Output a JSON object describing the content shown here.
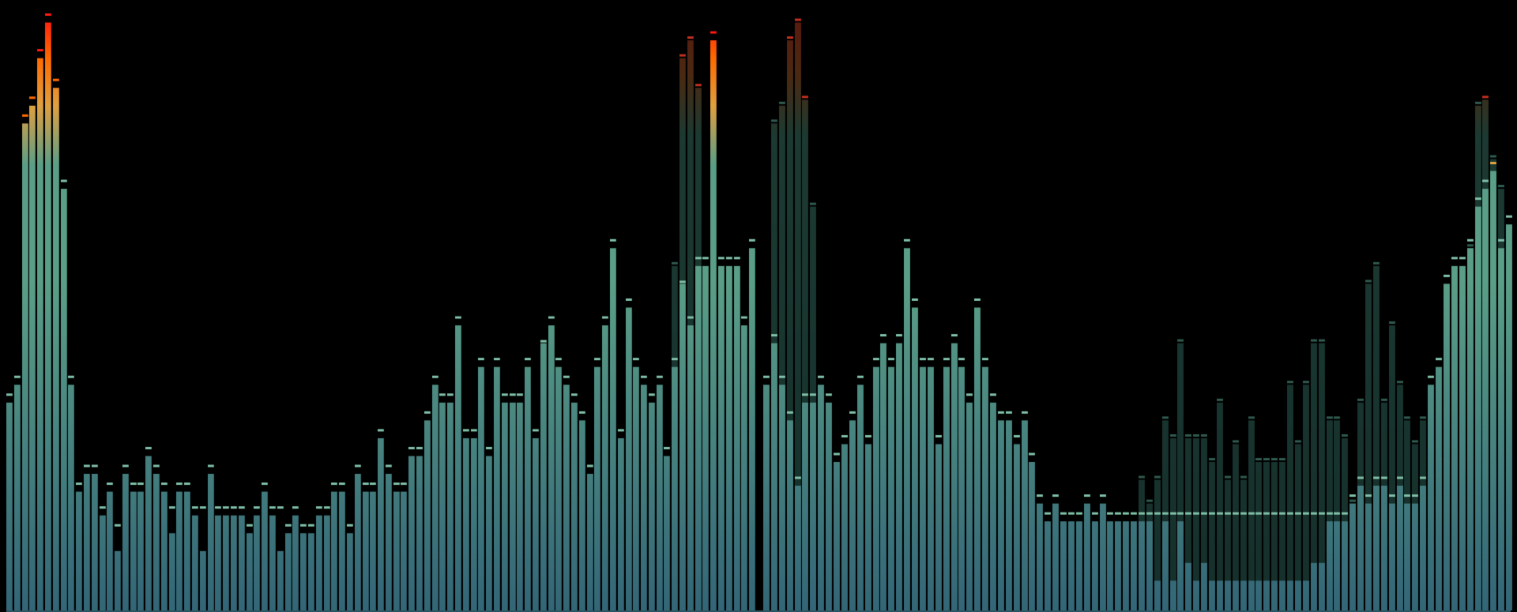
{
  "visualizer": {
    "type": "spectrum-analyzer-stereo",
    "channels": [
      {
        "name": "left",
        "levels": [
          0.35,
          0.38,
          0.82,
          0.85,
          0.93,
          0.99,
          0.88,
          0.71,
          0.38,
          0.2,
          0.23,
          0.23,
          0.16,
          0.2,
          0.1,
          0.23,
          0.2,
          0.2,
          0.26,
          0.23,
          0.2,
          0.13,
          0.2,
          0.2,
          0.16,
          0.1,
          0.23,
          0.16,
          0.16,
          0.16,
          0.16,
          0.13,
          0.16,
          0.2,
          0.16,
          0.1,
          0.13,
          0.16,
          0.13,
          0.13,
          0.16,
          0.16,
          0.2,
          0.2,
          0.13,
          0.23,
          0.2,
          0.2,
          0.29,
          0.23,
          0.2,
          0.2,
          0.26,
          0.26,
          0.32,
          0.38,
          0.35,
          0.35,
          0.48,
          0.29,
          0.29,
          0.41,
          0.26,
          0.41,
          0.35,
          0.35,
          0.35,
          0.41,
          0.29,
          0.45,
          0.48,
          0.41,
          0.38,
          0.35,
          0.32,
          0.23,
          0.41,
          0.48,
          0.61,
          0.29,
          0.51,
          0.41,
          0.38,
          0.35,
          0.38,
          0.26,
          0.41,
          0.55,
          0.48,
          0.58,
          0.58,
          0.96,
          0.58,
          0.58,
          0.58,
          0.48,
          0.61
        ],
        "peaks": [
          0.36,
          0.39,
          0.83,
          0.86,
          0.94,
          1.0,
          0.89,
          0.72,
          0.39,
          0.21,
          0.24,
          0.24,
          0.17,
          0.21,
          0.14,
          0.24,
          0.21,
          0.21,
          0.27,
          0.24,
          0.21,
          0.17,
          0.21,
          0.21,
          0.17,
          0.17,
          0.24,
          0.17,
          0.17,
          0.17,
          0.17,
          0.14,
          0.17,
          0.21,
          0.17,
          0.17,
          0.14,
          0.17,
          0.14,
          0.14,
          0.17,
          0.17,
          0.21,
          0.21,
          0.14,
          0.24,
          0.21,
          0.21,
          0.3,
          0.24,
          0.21,
          0.21,
          0.27,
          0.27,
          0.33,
          0.39,
          0.36,
          0.36,
          0.49,
          0.3,
          0.3,
          0.42,
          0.27,
          0.42,
          0.36,
          0.36,
          0.36,
          0.42,
          0.3,
          0.45,
          0.49,
          0.42,
          0.39,
          0.36,
          0.33,
          0.24,
          0.42,
          0.49,
          0.62,
          0.3,
          0.52,
          0.42,
          0.39,
          0.36,
          0.39,
          0.27,
          0.42,
          0.55,
          0.49,
          0.59,
          0.59,
          0.97,
          0.59,
          0.59,
          0.59,
          0.49,
          0.62
        ]
      },
      {
        "name": "right",
        "levels": [
          0.38,
          0.45,
          0.38,
          0.32,
          0.21,
          0.35,
          0.35,
          0.38,
          0.35,
          0.25,
          0.28,
          0.32,
          0.38,
          0.28,
          0.41,
          0.45,
          0.41,
          0.45,
          0.61,
          0.51,
          0.41,
          0.41,
          0.28,
          0.41,
          0.45,
          0.41,
          0.35,
          0.51,
          0.41,
          0.35,
          0.32,
          0.32,
          0.28,
          0.32,
          0.25,
          0.18,
          0.15,
          0.18,
          0.15,
          0.15,
          0.15,
          0.18,
          0.15,
          0.18,
          0.15,
          0.15,
          0.15,
          0.15,
          0.15,
          0.15,
          0.05,
          0.15,
          0.05,
          0.15,
          0.08,
          0.05,
          0.08,
          0.05,
          0.05,
          0.05,
          0.05,
          0.05,
          0.05,
          0.05,
          0.05,
          0.05,
          0.05,
          0.05,
          0.05,
          0.05,
          0.08,
          0.08,
          0.15,
          0.15,
          0.15,
          0.18,
          0.21,
          0.18,
          0.21,
          0.21,
          0.18,
          0.21,
          0.18,
          0.18,
          0.21,
          0.38,
          0.41,
          0.55,
          0.58,
          0.58,
          0.61,
          0.68,
          0.71,
          0.74,
          0.61,
          0.65
        ],
        "peaks": [
          0.39,
          0.46,
          0.39,
          0.33,
          0.22,
          0.36,
          0.36,
          0.39,
          0.36,
          0.26,
          0.29,
          0.33,
          0.39,
          0.29,
          0.42,
          0.46,
          0.42,
          0.46,
          0.62,
          0.52,
          0.42,
          0.42,
          0.29,
          0.42,
          0.46,
          0.42,
          0.36,
          0.52,
          0.42,
          0.36,
          0.33,
          0.33,
          0.29,
          0.33,
          0.26,
          0.19,
          0.16,
          0.19,
          0.16,
          0.16,
          0.16,
          0.19,
          0.16,
          0.19,
          0.16,
          0.16,
          0.16,
          0.16,
          0.16,
          0.16,
          0.16,
          0.16,
          0.16,
          0.16,
          0.16,
          0.16,
          0.16,
          0.16,
          0.16,
          0.16,
          0.16,
          0.16,
          0.16,
          0.16,
          0.16,
          0.16,
          0.16,
          0.16,
          0.16,
          0.16,
          0.16,
          0.16,
          0.16,
          0.16,
          0.16,
          0.19,
          0.22,
          0.19,
          0.22,
          0.22,
          0.19,
          0.22,
          0.19,
          0.19,
          0.22,
          0.39,
          0.42,
          0.56,
          0.59,
          0.59,
          0.62,
          0.69,
          0.72,
          0.75,
          0.62,
          0.66
        ]
      }
    ],
    "ghost_levels": {
      "left_tail": [
        0.0,
        0.0,
        0.0,
        0.0,
        0.0,
        0.0,
        0.0,
        0.0,
        0.0,
        0.0,
        0.0,
        0.0,
        0.0,
        0.0,
        0.0,
        0.0,
        0.0,
        0.0,
        0.0,
        0.0,
        0.0,
        0.0,
        0.0,
        0.0,
        0.0,
        0.0,
        0.0,
        0.0,
        0.0,
        0.0,
        0.0,
        0.0,
        0.0,
        0.0,
        0.0,
        0.0,
        0.0,
        0.0,
        0.0,
        0.0,
        0.0,
        0.0,
        0.0,
        0.0,
        0.0,
        0.0,
        0.0,
        0.0,
        0.0,
        0.0,
        0.0,
        0.0,
        0.0,
        0.0,
        0.0,
        0.0,
        0.0,
        0.0,
        0.0,
        0.0,
        0.0,
        0.0,
        0.0,
        0.0,
        0.0,
        0.0,
        0.0,
        0.0,
        0.0,
        0.0,
        0.0,
        0.0,
        0.0,
        0.0,
        0.0,
        0.0,
        0.0,
        0.0,
        0.0,
        0.0,
        0.0,
        0.0,
        0.0,
        0.0,
        0.0,
        0.0,
        0.58,
        0.93,
        0.96,
        0.88,
        0.0,
        0.0,
        0.0,
        0.0,
        0.0,
        0.0
      ],
      "right_tail": [
        0.0,
        0.82,
        0.85,
        0.96,
        0.99,
        0.86,
        0.68,
        0.0,
        0.0,
        0.0,
        0.0,
        0.0,
        0.0,
        0.0,
        0.0,
        0.0,
        0.0,
        0.0,
        0.0,
        0.0,
        0.0,
        0.0,
        0.0,
        0.0,
        0.0,
        0.0,
        0.0,
        0.0,
        0.0,
        0.0,
        0.0,
        0.0,
        0.0,
        0.0,
        0.0,
        0.0,
        0.0,
        0.0,
        0.0,
        0.0,
        0.0,
        0.0,
        0.0,
        0.0,
        0.0,
        0.0,
        0.0,
        0.0,
        0.22,
        0.18,
        0.22,
        0.32,
        0.29,
        0.45,
        0.29,
        0.29,
        0.29,
        0.25,
        0.35,
        0.22,
        0.28,
        0.22,
        0.32,
        0.25,
        0.25,
        0.25,
        0.25,
        0.38,
        0.28,
        0.38,
        0.45,
        0.45,
        0.32,
        0.32,
        0.29,
        0.18,
        0.35,
        0.55,
        0.58,
        0.35,
        0.48,
        0.38,
        0.32,
        0.28,
        0.32,
        0.22,
        0.25,
        0.38,
        0.48,
        0.55,
        0.61,
        0.85,
        0.86,
        0.76,
        0.71,
        0.58,
        0.58
      ]
    },
    "colors": {
      "background": "#000000",
      "bar_bottom": "#336677",
      "bar_mid": "#5a9e87",
      "bar_high": "#e0a040",
      "bar_hot": "#ff6a00",
      "bar_peak": "#ff1a10",
      "ghost": "#1f3d36",
      "peak_cap": "#7fc0a8"
    }
  }
}
